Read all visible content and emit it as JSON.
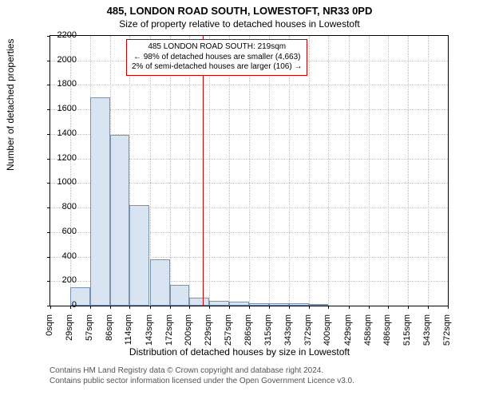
{
  "header": {
    "title": "485, LONDON ROAD SOUTH, LOWESTOFT, NR33 0PD",
    "subtitle": "Size of property relative to detached houses in Lowestoft"
  },
  "chart": {
    "type": "histogram",
    "ylabel": "Number of detached properties",
    "xlabel": "Distribution of detached houses by size in Lowestoft",
    "ylim": [
      0,
      2200
    ],
    "ytick_step": 200,
    "yticks": [
      0,
      200,
      400,
      600,
      800,
      1000,
      1200,
      1400,
      1600,
      1800,
      2000,
      2200
    ],
    "xticks": [
      "0sqm",
      "29sqm",
      "57sqm",
      "86sqm",
      "114sqm",
      "143sqm",
      "172sqm",
      "200sqm",
      "229sqm",
      "257sqm",
      "286sqm",
      "315sqm",
      "343sqm",
      "372sqm",
      "400sqm",
      "429sqm",
      "458sqm",
      "486sqm",
      "515sqm",
      "543sqm",
      "572sqm"
    ],
    "bars": [
      {
        "x_start": 29,
        "x_end": 57,
        "value": 152
      },
      {
        "x_start": 57,
        "x_end": 86,
        "value": 1700
      },
      {
        "x_start": 86,
        "x_end": 114,
        "value": 1390
      },
      {
        "x_start": 114,
        "x_end": 143,
        "value": 820
      },
      {
        "x_start": 143,
        "x_end": 172,
        "value": 380
      },
      {
        "x_start": 172,
        "x_end": 200,
        "value": 168
      },
      {
        "x_start": 200,
        "x_end": 229,
        "value": 66
      },
      {
        "x_start": 229,
        "x_end": 257,
        "value": 36
      },
      {
        "x_start": 257,
        "x_end": 286,
        "value": 30
      },
      {
        "x_start": 286,
        "x_end": 315,
        "value": 20
      },
      {
        "x_start": 315,
        "x_end": 343,
        "value": 22
      },
      {
        "x_start": 343,
        "x_end": 372,
        "value": 20
      },
      {
        "x_start": 372,
        "x_end": 400,
        "value": 6
      }
    ],
    "x_domain_max": 572,
    "reference_line_x": 219,
    "reference_line_color": "#cc0000",
    "bar_fill": "#d8e4f2",
    "bar_border": "#7a94b0",
    "grid_color": "#c0c0c0",
    "background": "#ffffff",
    "font_family": "Arial",
    "title_fontsize": 13,
    "label_fontsize": 12,
    "tick_fontsize": 11
  },
  "annotation": {
    "line1": "485 LONDON ROAD SOUTH: 219sqm",
    "line2": "← 98% of detached houses are smaller (4,663)",
    "line3": "2% of semi-detached houses are larger (106) →",
    "border_color": "#cc0000",
    "fontsize": 10
  },
  "footer": {
    "line1": "Contains HM Land Registry data © Crown copyright and database right 2024.",
    "line2": "Contains public sector information licensed under the Open Government Licence v3.0.",
    "color": "#555555",
    "fontsize": 10
  }
}
